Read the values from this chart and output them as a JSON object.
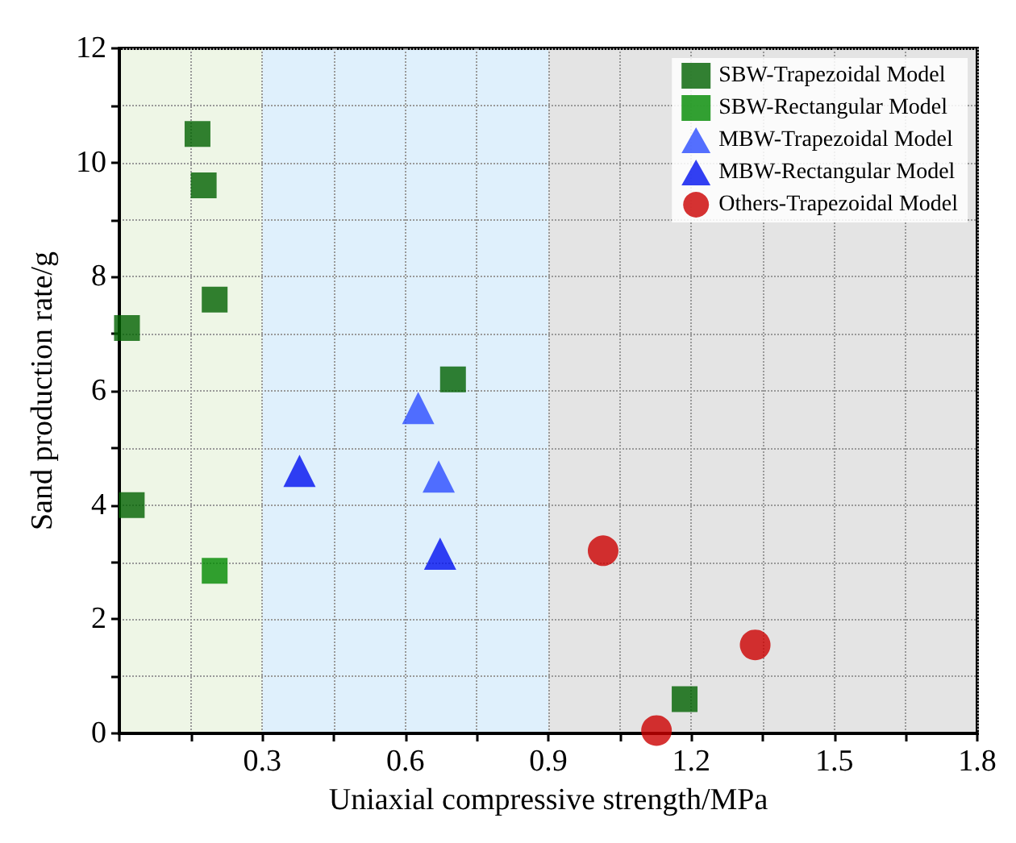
{
  "chart_data": {
    "type": "scatter",
    "xlabel": "Uniaxial compressive strength/MPa",
    "ylabel": "Sand production rate/g",
    "xlim": [
      0,
      1.8
    ],
    "ylim": [
      0,
      12
    ],
    "xticks": [
      {
        "value": 0,
        "label": null
      },
      {
        "value": 0.15,
        "label": null
      },
      0.3,
      {
        "value": 0.45,
        "label": null
      },
      0.6,
      {
        "value": 0.75,
        "label": null
      },
      0.9,
      {
        "value": 1.05,
        "label": null
      },
      1.2,
      {
        "value": 1.35,
        "label": null
      },
      1.5,
      {
        "value": 1.65,
        "label": null
      },
      1.8
    ],
    "yticks": [
      0,
      {
        "value": 1,
        "label": null
      },
      2,
      {
        "value": 3,
        "label": null
      },
      4,
      {
        "value": 5,
        "label": null
      },
      6,
      {
        "value": 7,
        "label": null
      },
      8,
      {
        "value": 9,
        "label": null
      },
      10,
      {
        "value": 11,
        "label": null
      },
      12
    ],
    "grid": true,
    "legend": "top right",
    "bands": [
      {
        "axis": "x",
        "from": 0,
        "to": 0.3,
        "color": "#eef6e6"
      },
      {
        "axis": "x",
        "from": 0.3,
        "to": 0.9,
        "color": "#dff0fc"
      },
      {
        "axis": "x",
        "from": 0.9,
        "to": 1.8,
        "color": "#e4e4e4"
      }
    ],
    "series": [
      {
        "name": "SBW-Trapezoidal Model",
        "color": "#006100",
        "marker": "square",
        "x": [
          0.164,
          0.177,
          0.2,
          0.016,
          0.026,
          0.7,
          1.186
        ],
        "values": [
          10.5,
          9.6,
          7.6,
          7.1,
          4.0,
          6.2,
          0.6
        ]
      },
      {
        "name": "SBW-Rectangular Model",
        "color": "#008a00",
        "marker": "square",
        "x": [
          0.2
        ],
        "values": [
          2.85
        ]
      },
      {
        "name": "MBW-Trapezoidal Model",
        "color": "#2b4cff",
        "marker": "triangle",
        "x": [
          0.627,
          0.67
        ],
        "values": [
          5.7,
          4.5
        ]
      },
      {
        "name": "MBW-Rectangular Model",
        "color": "#0010f0",
        "marker": "triangle",
        "x": [
          0.378,
          0.673
        ],
        "values": [
          4.6,
          3.15
        ]
      },
      {
        "name": "Others-Trapezoidal Model",
        "color": "#cc0000",
        "marker": "circle",
        "x": [
          1.015,
          1.334,
          1.127
        ],
        "values": [
          3.2,
          1.55,
          0.05
        ]
      }
    ]
  }
}
